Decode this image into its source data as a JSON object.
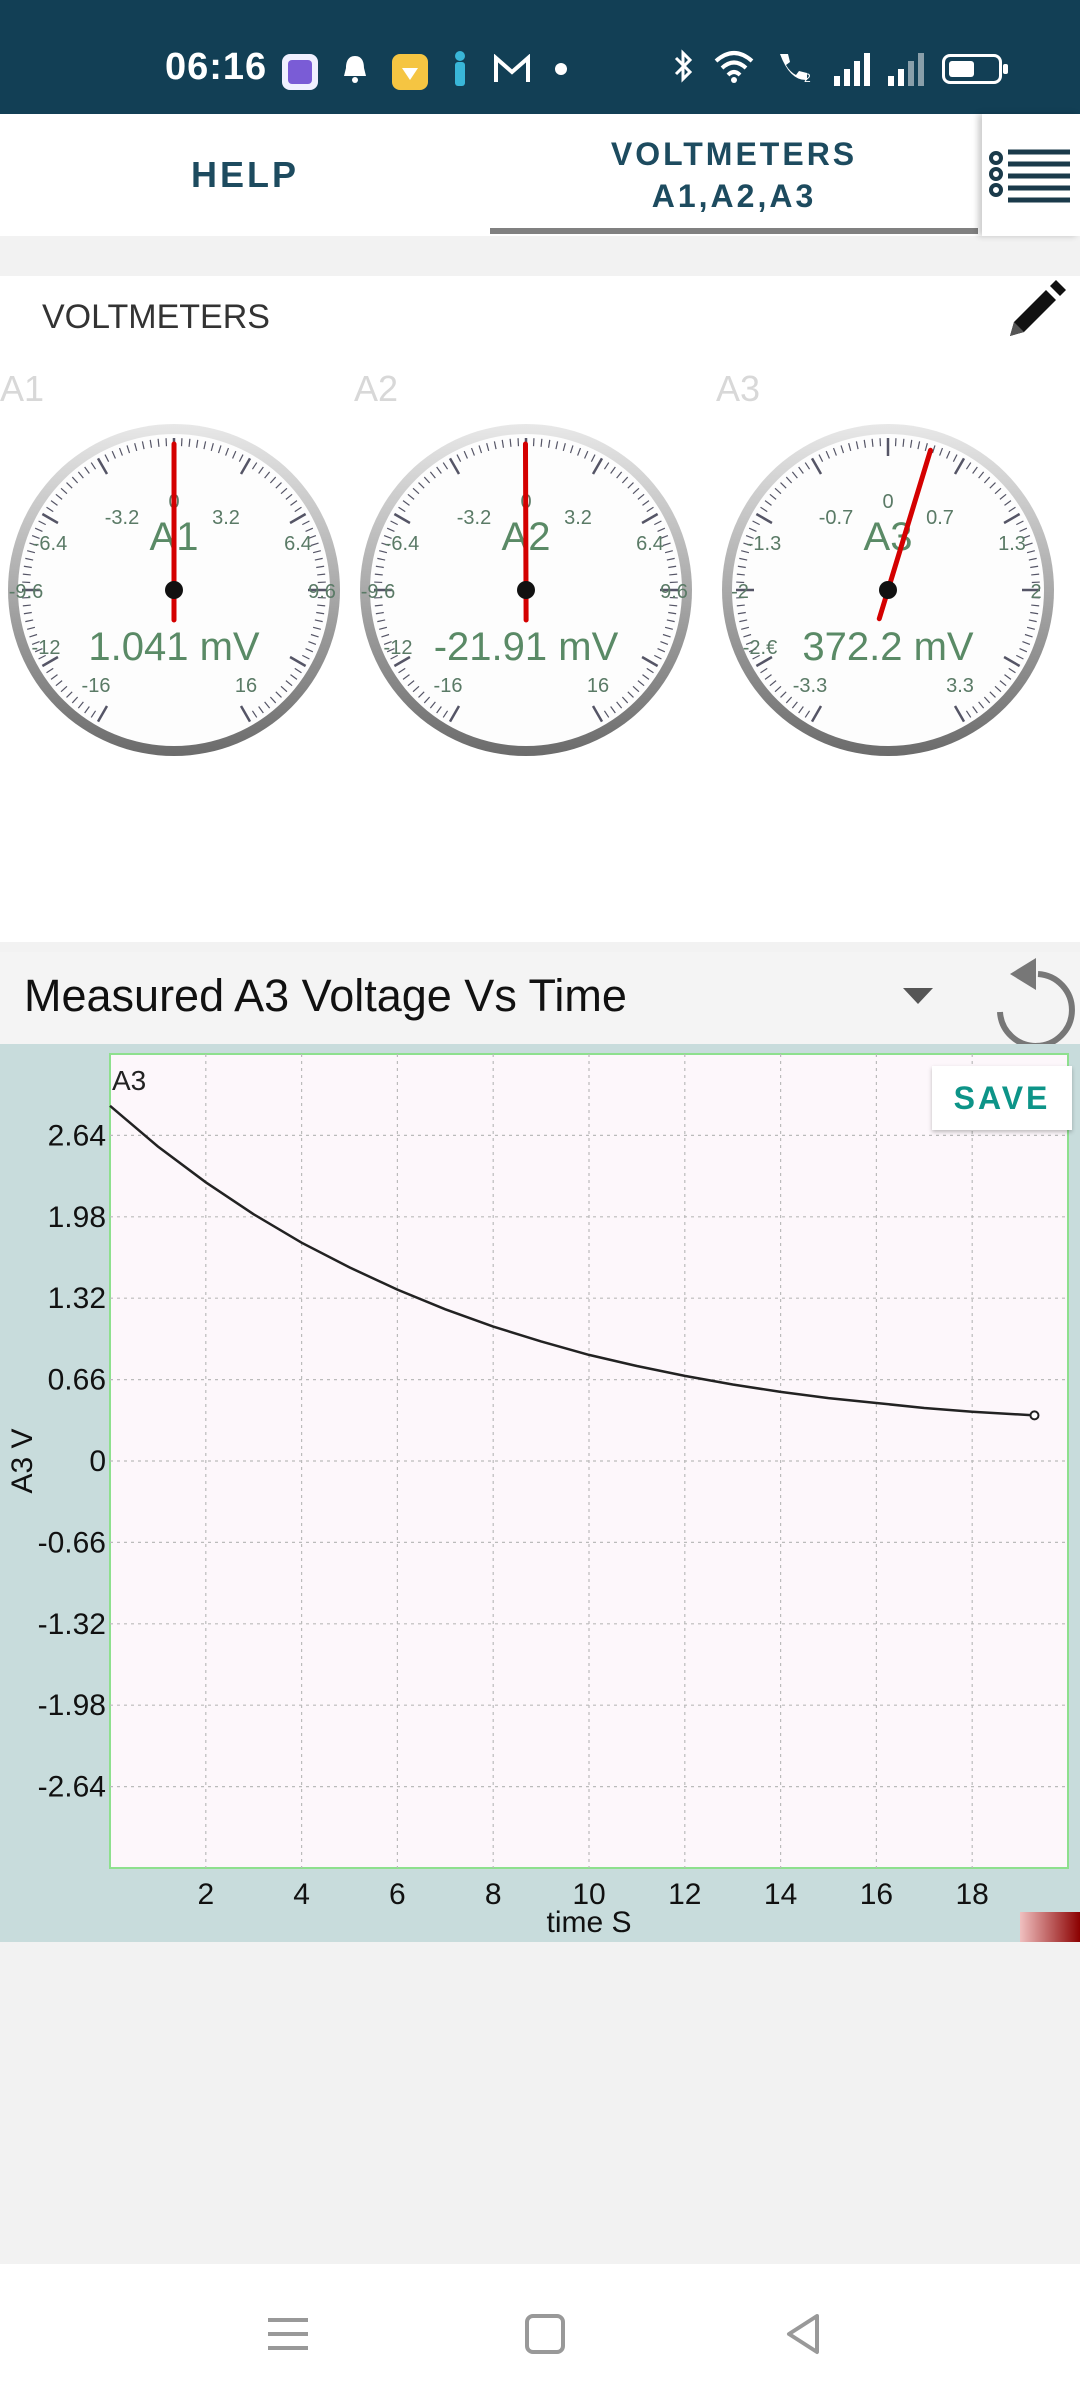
{
  "status_bar": {
    "time": "06:16",
    "notification_icons": [
      "gallery-icon",
      "bell-icon",
      "app-badge-icon",
      "person-icon",
      "gmail-icon",
      "dot-icon"
    ],
    "system_icons": [
      "bluetooth-icon",
      "wifi-icon",
      "call-icon",
      "signal-icon",
      "signal-icon",
      "battery-icon"
    ],
    "battery_level": 0.55
  },
  "tabs": [
    {
      "label": "HELP",
      "active": false
    },
    {
      "label_line1": "VOLTMETERS",
      "label_line2": "A1,A2,A3",
      "active": true
    }
  ],
  "menu_icon": "list-menu-icon",
  "voltmeters": {
    "title": "VOLTMETERS",
    "edit_icon": "pencil-icon",
    "gauges": [
      {
        "channel": "A1",
        "label": "A1",
        "reading": "1.041 mV",
        "value": 0.001041,
        "range": 16,
        "ticks": [
          "-3.2",
          "0",
          "3.2",
          "-6.4",
          "6.4",
          "-9.6",
          "9.6",
          "-12",
          "-16",
          "16"
        ]
      },
      {
        "channel": "A2",
        "label": "A2",
        "reading": "-21.91 mV",
        "value": -0.02191,
        "range": 16,
        "ticks": [
          "-3.2",
          "0",
          "3.2",
          "-6.4",
          "6.4",
          "-9.6",
          "9.6",
          "-12",
          "-16",
          "16"
        ]
      },
      {
        "channel": "A3",
        "label": "A3",
        "reading": "372.2 mV",
        "value": 0.3722,
        "range": 3.3,
        "ticks": [
          "-0.7",
          "0",
          "0.7",
          "-1.3",
          "1.3",
          "-2",
          "2",
          "-2.€",
          "-3.3",
          "3.3"
        ]
      }
    ]
  },
  "chart_section": {
    "title": "Measured A3 Voltage Vs Time",
    "save_label": "SAVE",
    "reset_icon": "reset-icon",
    "dropdown_icon": "dropdown-arrow-icon"
  },
  "chart_data": {
    "type": "line",
    "xlabel": "time S",
    "ylabel": "A3 V",
    "xlim": [
      0,
      20
    ],
    "ylim": [
      -3.3,
      3.3
    ],
    "xticks": [
      2,
      4,
      6,
      8,
      10,
      12,
      14,
      16,
      18
    ],
    "yticks": [
      2.64,
      1.98,
      1.32,
      0.66,
      0,
      -0.66,
      -1.32,
      -1.98,
      -2.64
    ],
    "ytick_labels": [
      "2.64",
      "1.98",
      "1.32",
      "0.66",
      "0",
      "-0.66",
      "-1.32",
      "-1.98",
      "-2.64"
    ],
    "grid": true,
    "series": [
      {
        "name": "A3",
        "x": [
          0,
          1,
          2,
          3,
          4,
          5,
          6,
          7,
          8,
          9,
          10,
          11,
          12,
          13,
          14,
          15,
          16,
          17,
          18,
          19.3
        ],
        "y": [
          2.88,
          2.55,
          2.26,
          2.0,
          1.77,
          1.57,
          1.39,
          1.23,
          1.09,
          0.97,
          0.86,
          0.77,
          0.69,
          0.62,
          0.56,
          0.51,
          0.47,
          0.43,
          0.4,
          0.37
        ]
      }
    ],
    "line_color": "#222222"
  },
  "nav_bar": {
    "items": [
      "menu-nav-icon",
      "home-nav-icon",
      "back-nav-icon"
    ]
  }
}
